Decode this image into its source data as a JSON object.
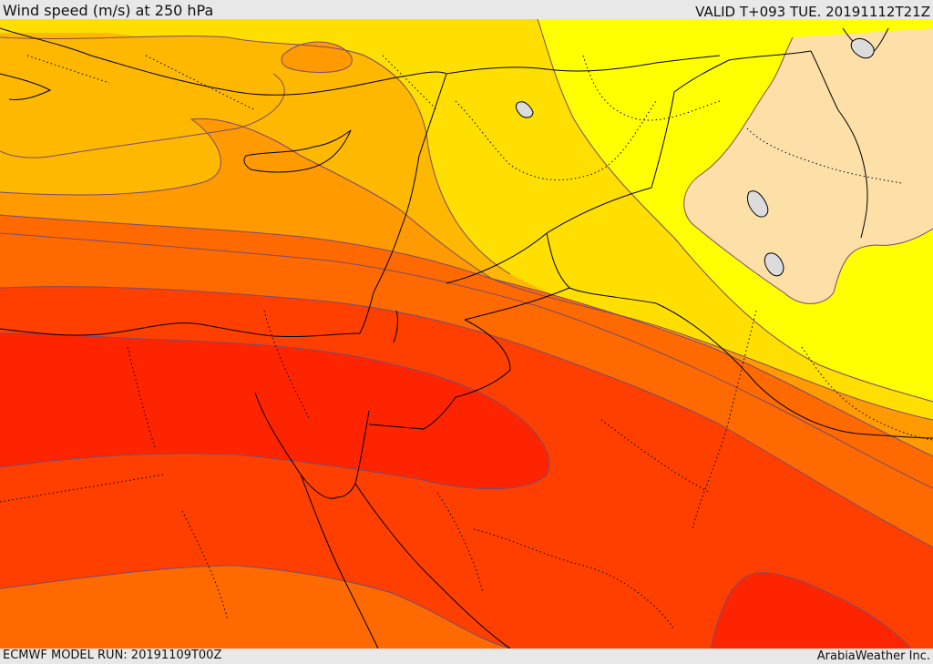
{
  "header": {
    "title": "Wind speed (m/s) at 250 hPa",
    "valid": "VALID T+093 TUE. 20191112T21Z"
  },
  "footer": {
    "model_run": "ECMWF MODEL RUN: 20191109T00Z",
    "credit": "ArabiaWeather Inc."
  },
  "map": {
    "variable": "wind speed",
    "level_hpa": 250,
    "units": "m/s",
    "colors": {
      "pale": "#fde0a8",
      "yellow": "#ffff00",
      "gold": "#ffdf00",
      "amber": "#ffb800",
      "light_orange": "#ff9a00",
      "orange": "#ff6a00",
      "red_orange": "#ff3f00",
      "red": "#ff2400",
      "contour": "#7a4a70",
      "boundary": "#000000",
      "lake": "#dcdcdc"
    }
  }
}
